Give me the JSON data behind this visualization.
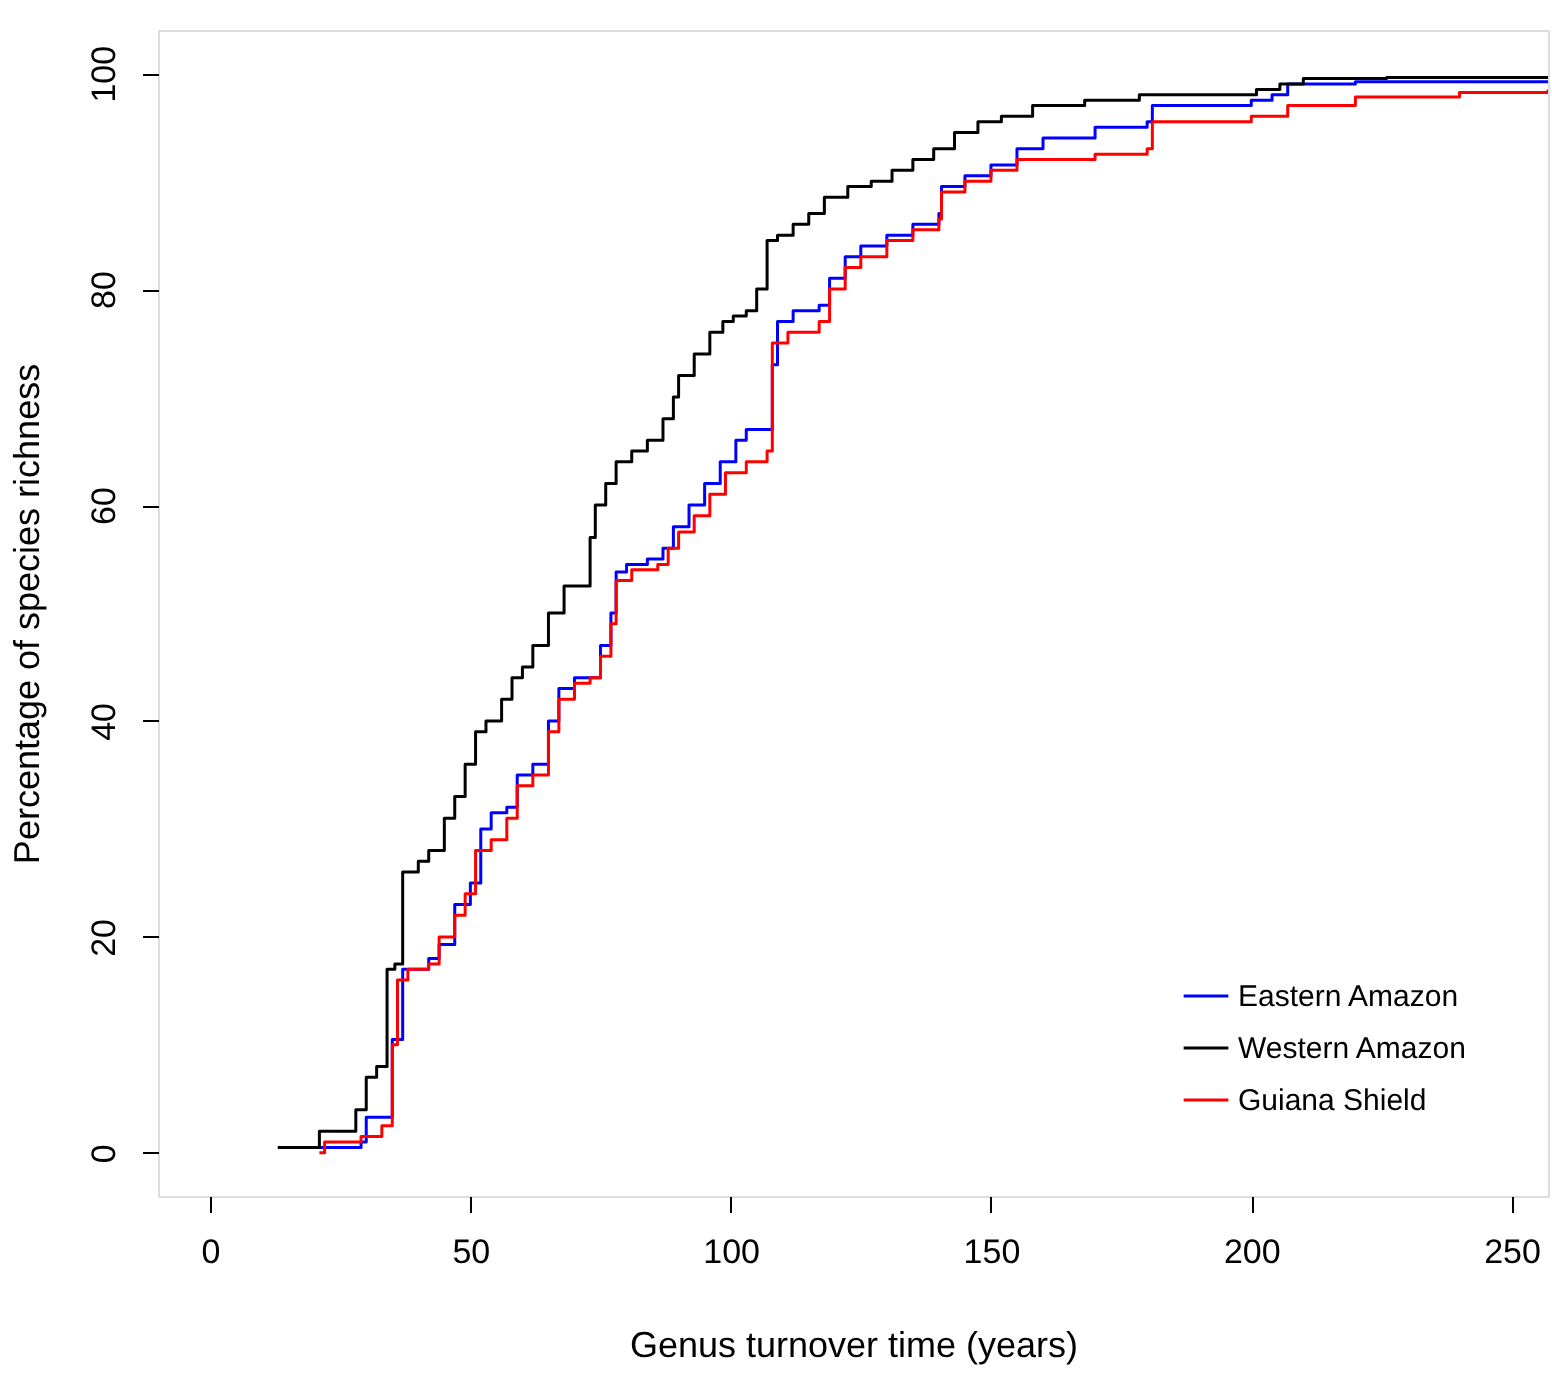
{
  "chart_data": {
    "type": "step",
    "xlabel": "Genus turnover time (years)",
    "ylabel": "Percentage of species richness",
    "xlim": [
      -10,
      257
    ],
    "xticks": [
      0,
      50,
      100,
      150,
      200,
      250
    ],
    "ylim": [
      -4,
      104
    ],
    "yticks": [
      0,
      20,
      40,
      60,
      80,
      100
    ],
    "grid": false,
    "legend": "bottom right",
    "line_style": "solid",
    "marker": "none",
    "series": [
      {
        "name": "Eastern Amazon",
        "color": "#0000ff",
        "x": [
          21,
          29,
          30,
          35,
          37,
          42,
          44,
          47,
          50,
          52,
          54,
          57,
          59,
          62,
          65,
          67,
          70,
          73,
          75,
          77,
          78,
          80,
          84,
          87,
          89,
          92,
          95,
          98,
          101,
          103,
          107,
          108,
          109,
          112,
          117,
          119,
          122,
          125,
          130,
          135,
          140,
          140.5,
          145,
          150,
          155,
          160,
          170,
          180,
          181,
          200,
          204,
          207,
          220,
          257
        ],
        "values": [
          0.5,
          1,
          3.3,
          10.5,
          17,
          18,
          19.3,
          23,
          25,
          30,
          31.5,
          32,
          35,
          36,
          40,
          43,
          44,
          44,
          47,
          50,
          53.8,
          54.5,
          55,
          56,
          58,
          60,
          62,
          64,
          66,
          67,
          67,
          73,
          77,
          78,
          78.5,
          81,
          83,
          84,
          85,
          86,
          87,
          89.5,
          90.5,
          91.5,
          93,
          94,
          95,
          95.5,
          97,
          97.5,
          98,
          99,
          99.2,
          99.3
        ]
      },
      {
        "name": "Western Amazon",
        "color": "#000000",
        "x": [
          13,
          21,
          28,
          30,
          32,
          34,
          35.5,
          37,
          40,
          42,
          45,
          47,
          49,
          51,
          53,
          56,
          58,
          60,
          62,
          65,
          68,
          71,
          73,
          74,
          76,
          78,
          81,
          84,
          87,
          89,
          90,
          93,
          96,
          98.5,
          100.5,
          103,
          105,
          107,
          109,
          112,
          115,
          118,
          122.5,
          127,
          131,
          135,
          139,
          143,
          147.5,
          152,
          158,
          168,
          178.5,
          201,
          205.5,
          210,
          226,
          257
        ],
        "values": [
          0.5,
          2,
          4,
          7,
          8,
          17,
          17.5,
          26,
          27,
          28,
          31,
          33,
          36,
          39,
          40,
          42,
          44,
          45,
          47,
          50,
          52.5,
          52.5,
          57,
          60,
          62,
          64,
          65,
          66,
          68,
          70,
          72,
          74,
          76,
          77,
          77.5,
          78,
          80,
          84.5,
          85,
          86,
          87,
          88.5,
          89.5,
          90,
          91,
          92,
          93,
          94.5,
          95.5,
          96,
          97,
          97.5,
          98,
          98.5,
          99,
          99.5,
          99.6,
          99.6
        ]
      },
      {
        "name": "Guiana Shield",
        "color": "#ff0000",
        "x": [
          21,
          22,
          29,
          33,
          35,
          36,
          38,
          42,
          44,
          47,
          49,
          51,
          54,
          57,
          59,
          62,
          65,
          67,
          70,
          73,
          75,
          77,
          78,
          81,
          86,
          88,
          90,
          93,
          96,
          99,
          103,
          107,
          108,
          111,
          117,
          119,
          122,
          125,
          130,
          135,
          140,
          140.5,
          145,
          150,
          155,
          170,
          180,
          181,
          200,
          207,
          220,
          240,
          257
        ],
        "values": [
          0,
          1,
          1.5,
          2.5,
          10,
          16,
          17,
          17.5,
          20,
          22,
          24,
          28,
          29,
          31,
          34,
          35,
          39,
          42,
          43.5,
          44,
          46,
          49,
          53,
          54,
          54.5,
          56,
          57.5,
          59,
          61,
          63,
          64,
          65,
          75,
          76,
          77,
          80,
          82,
          83,
          84.5,
          85.5,
          86.5,
          89,
          90,
          91,
          92,
          92.5,
          93,
          95.5,
          96,
          97,
          97.8,
          98.2,
          98.5
        ]
      }
    ]
  }
}
